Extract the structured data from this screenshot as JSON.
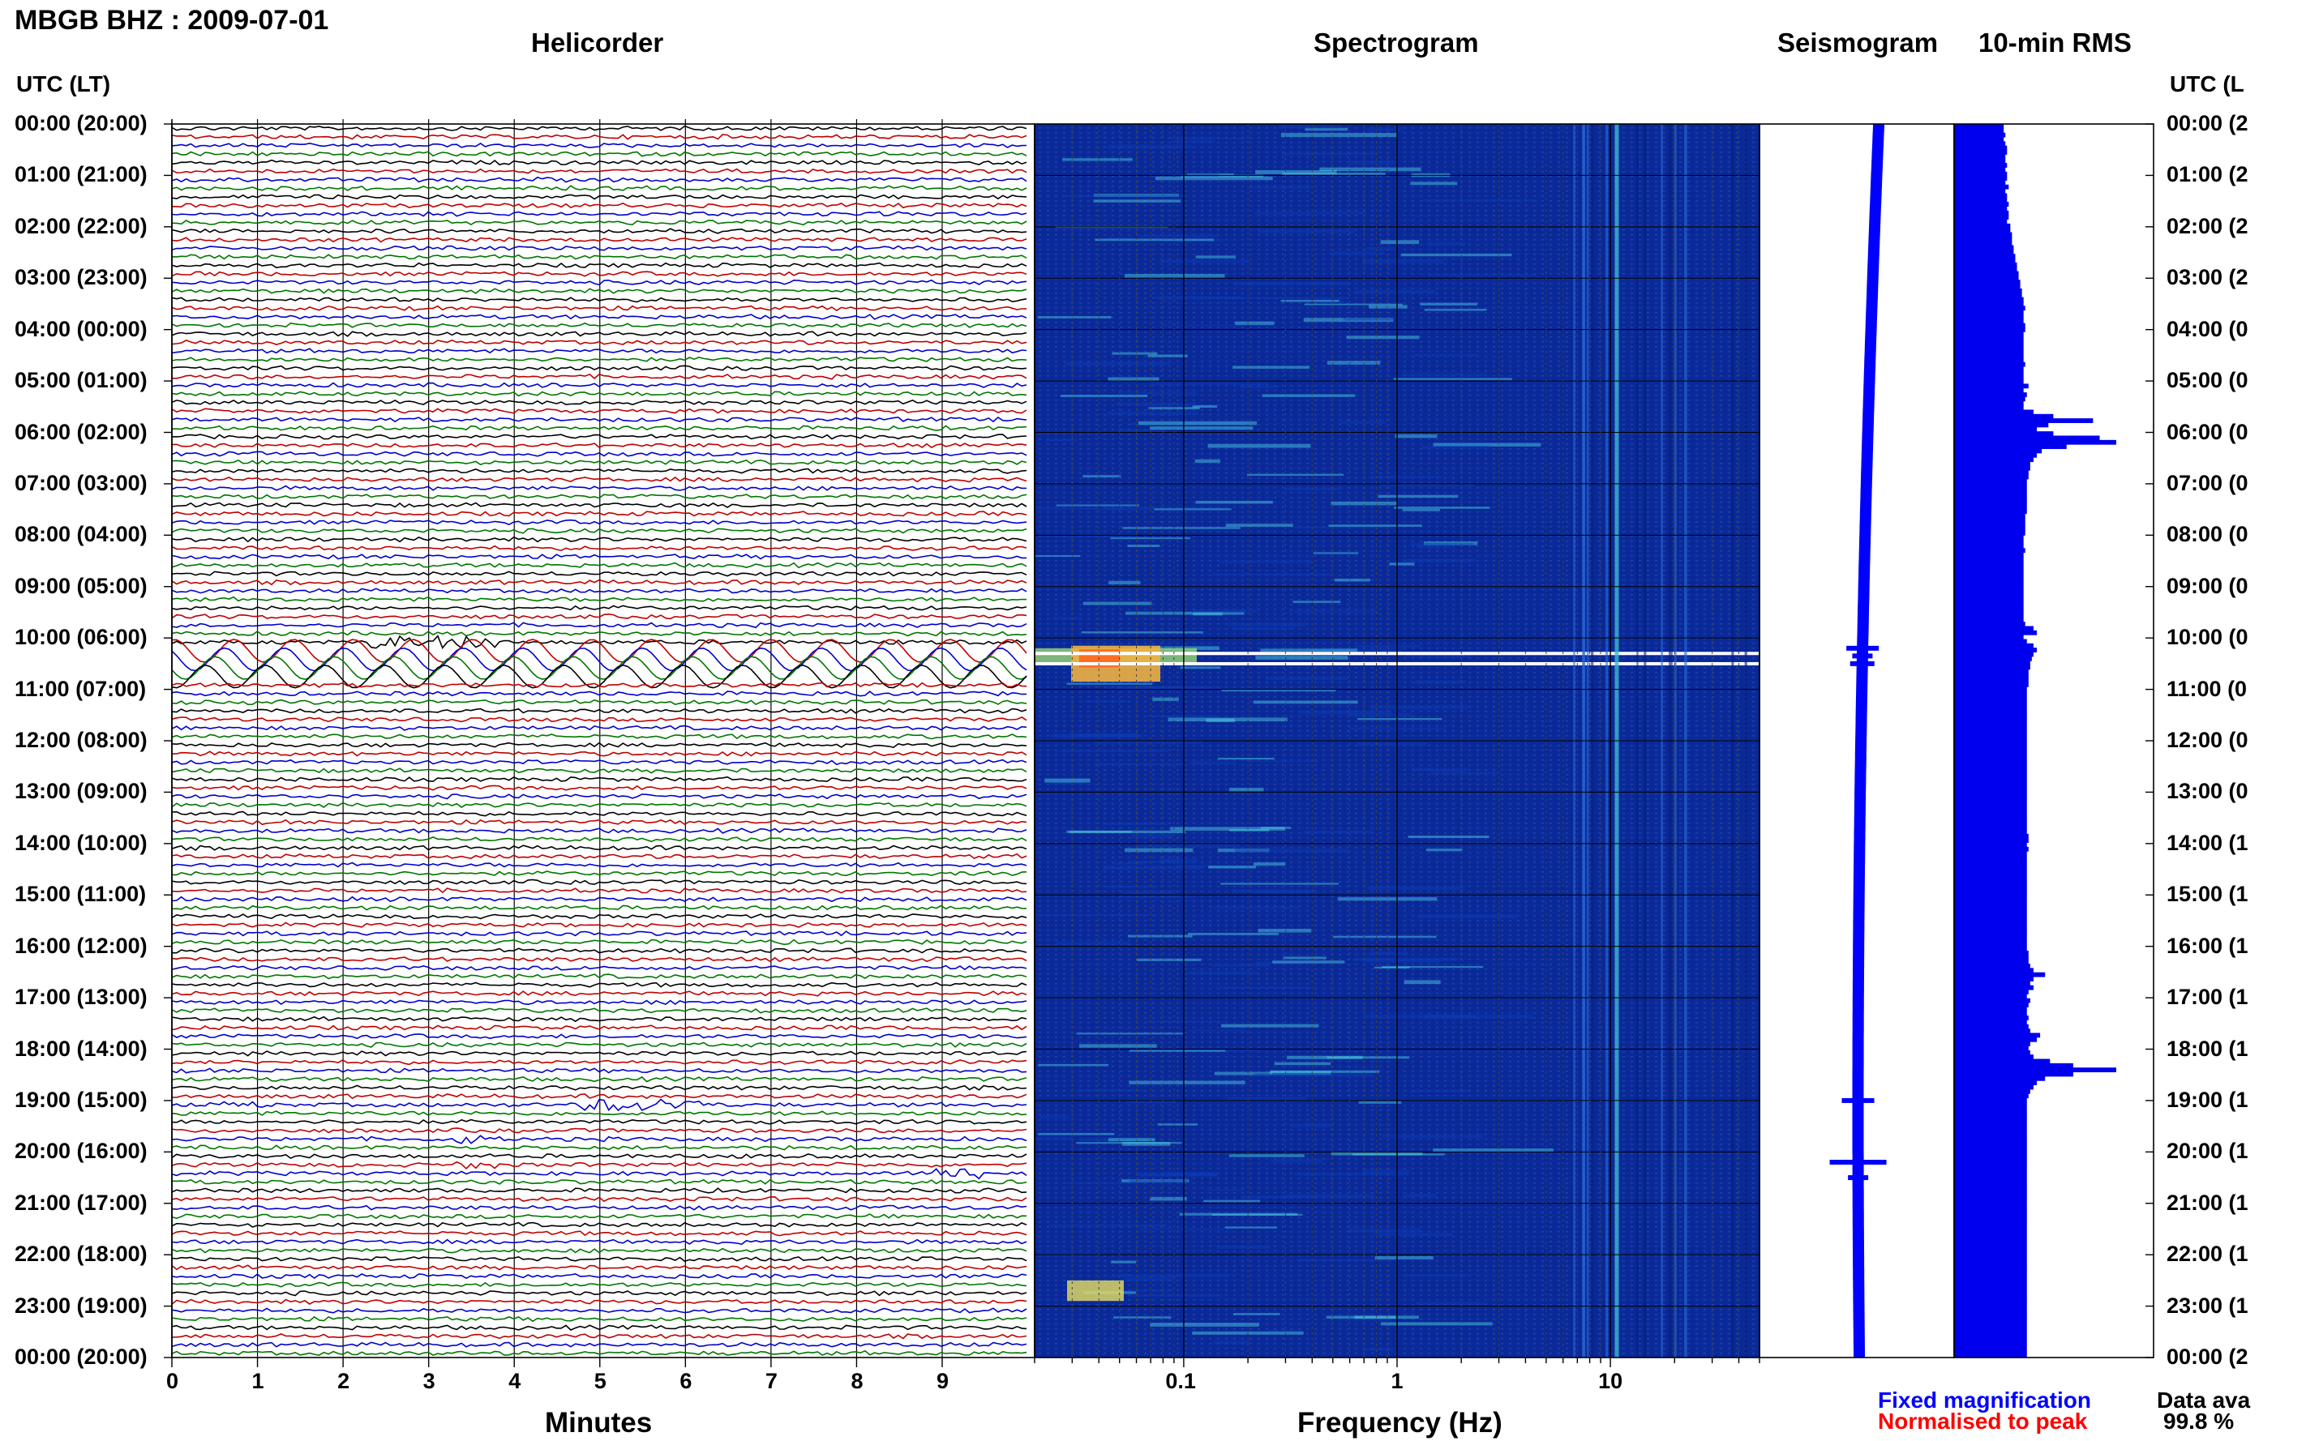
{
  "header": {
    "station_title": "MBGB BHZ : 2009-07-01",
    "helicorder_title": "Helicorder",
    "spectrogram_title": "Spectrogram",
    "seismogram_title": "Seismogram",
    "rms_title": "10-min RMS",
    "left_axis_header": "UTC (LT)",
    "right_axis_header": "UTC (L"
  },
  "time_labels_left": [
    "00:00 (20:00)",
    "01:00 (21:00)",
    "02:00 (22:00)",
    "03:00 (23:00)",
    "04:00 (00:00)",
    "05:00 (01:00)",
    "06:00 (02:00)",
    "07:00 (03:00)",
    "08:00 (04:00)",
    "09:00 (05:00)",
    "10:00 (06:00)",
    "11:00 (07:00)",
    "12:00 (08:00)",
    "13:00 (09:00)",
    "14:00 (10:00)",
    "15:00 (11:00)",
    "16:00 (12:00)",
    "17:00 (13:00)",
    "18:00 (14:00)",
    "19:00 (15:00)",
    "20:00 (16:00)",
    "21:00 (17:00)",
    "22:00 (18:00)",
    "23:00 (19:00)",
    "00:00 (20:00)"
  ],
  "time_labels_right": [
    "00:00 (2",
    "01:00 (2",
    "02:00 (2",
    "03:00 (2",
    "04:00 (0",
    "05:00 (0",
    "06:00 (0",
    "07:00 (0",
    "08:00 (0",
    "09:00 (0",
    "10:00 (0",
    "11:00 (0",
    "12:00 (0",
    "13:00 (0",
    "14:00 (1",
    "15:00 (1",
    "16:00 (1",
    "17:00 (1",
    "18:00 (1",
    "19:00 (1",
    "20:00 (1",
    "21:00 (1",
    "22:00 (1",
    "23:00 (1",
    "00:00 (2"
  ],
  "helicorder": {
    "xlabel": "Minutes",
    "x_ticks": [
      "0",
      "1",
      "2",
      "3",
      "4",
      "5",
      "6",
      "7",
      "8",
      "9"
    ],
    "trace_colors": [
      "#000000",
      "#c00000",
      "#0000cc",
      "#007700"
    ]
  },
  "spectrogram": {
    "xlabel": "Frequency (Hz)",
    "x_ticks": [
      "0.1",
      "1",
      "10"
    ]
  },
  "footer": {
    "fixed_magnification": "Fixed magnification",
    "normalised_to_peak": "Normalised to peak",
    "data_availability_label": "Data ava",
    "data_availability_value": "99.8 %"
  },
  "colors": {
    "fixed_magnification": "#0000ff",
    "normalised_to_peak": "#ff0000",
    "rms_bar": "#0000ee",
    "seismogram": "#0000ff"
  },
  "chart_data": [
    {
      "type": "line",
      "title": "Helicorder",
      "xlabel": "Minutes",
      "xlim": [
        0,
        10
      ],
      "ylabel": "UTC (LT)",
      "rows_per_hour": 6,
      "events": [
        {
          "time_utc": "10:00-10:20",
          "note": "large oscillating signal"
        },
        {
          "time_utc": "19:00",
          "note": "local event"
        },
        {
          "time_utc": "20:10",
          "note": "local event"
        }
      ]
    },
    {
      "type": "heatmap",
      "title": "Spectrogram",
      "xlabel": "Frequency (Hz)",
      "x_scale": "log",
      "xlim": [
        0.02,
        50
      ],
      "x_ticks": [
        0.1,
        1,
        10
      ],
      "ylim_hours": [
        0,
        24
      ]
    },
    {
      "type": "bar",
      "title": "10-min RMS",
      "orientation": "horizontal",
      "bins_per_hour": 6,
      "values_relative": [
        0.3,
        0.3,
        0.31,
        0.3,
        0.31,
        0.32,
        0.32,
        0.31,
        0.31,
        0.32,
        0.31,
        0.32,
        0.32,
        0.31,
        0.33,
        0.31,
        0.32,
        0.32,
        0.33,
        0.32,
        0.33,
        0.33,
        0.32,
        0.34,
        0.34,
        0.35,
        0.35,
        0.35,
        0.36,
        0.36,
        0.37,
        0.37,
        0.38,
        0.38,
        0.39,
        0.39,
        0.4,
        0.4,
        0.41,
        0.41,
        0.42,
        0.42,
        0.43,
        0.42,
        0.42,
        0.42,
        0.43,
        0.43,
        0.42,
        0.42,
        0.42,
        0.42,
        0.42,
        0.42,
        0.42,
        0.43,
        0.42,
        0.42,
        0.42,
        0.42,
        0.45,
        0.42,
        0.44,
        0.43,
        0.42,
        0.42,
        0.48,
        0.6,
        0.84,
        0.57,
        0.5,
        0.6,
        0.88,
        0.98,
        0.68,
        0.53,
        0.5,
        0.48,
        0.46,
        0.46,
        0.45,
        0.45,
        0.44,
        0.44,
        0.44,
        0.44,
        0.44,
        0.44,
        0.44,
        0.44,
        0.43,
        0.43,
        0.43,
        0.43,
        0.43,
        0.42,
        0.42,
        0.42,
        0.43,
        0.42,
        0.42,
        0.42,
        0.42,
        0.42,
        0.42,
        0.42,
        0.42,
        0.42,
        0.42,
        0.42,
        0.42,
        0.42,
        0.42,
        0.42,
        0.42,
        0.43,
        0.48,
        0.5,
        0.42,
        0.44,
        0.48,
        0.5,
        0.48,
        0.47,
        0.46,
        0.46,
        0.45,
        0.45,
        0.45,
        0.45,
        0.44,
        0.44,
        0.44,
        0.44,
        0.44,
        0.44,
        0.44,
        0.44,
        0.44,
        0.44,
        0.44,
        0.44,
        0.44,
        0.44,
        0.44,
        0.44,
        0.44,
        0.44,
        0.44,
        0.44,
        0.44,
        0.44,
        0.44,
        0.44,
        0.44,
        0.44,
        0.44,
        0.44,
        0.44,
        0.44,
        0.44,
        0.44,
        0.44,
        0.44,
        0.45,
        0.45,
        0.44,
        0.45,
        0.44,
        0.44,
        0.44,
        0.44,
        0.44,
        0.44,
        0.44,
        0.44,
        0.44,
        0.44,
        0.44,
        0.44,
        0.44,
        0.44,
        0.44,
        0.44,
        0.44,
        0.44,
        0.44,
        0.44,
        0.44,
        0.44,
        0.44,
        0.45,
        0.45,
        0.45,
        0.46,
        0.48,
        0.55,
        0.48,
        0.46,
        0.48,
        0.45,
        0.44,
        0.46,
        0.45,
        0.44,
        0.44,
        0.45,
        0.44,
        0.45,
        0.46,
        0.52,
        0.5,
        0.46,
        0.45,
        0.46,
        0.48,
        0.58,
        0.72,
        0.98,
        0.72,
        0.55,
        0.5,
        0.48,
        0.46,
        0.45,
        0.44,
        0.44,
        0.44,
        0.44,
        0.44,
        0.44,
        0.44,
        0.44,
        0.44,
        0.44,
        0.44,
        0.44,
        0.44,
        0.44,
        0.44,
        0.44,
        0.44,
        0.44,
        0.44,
        0.44,
        0.44,
        0.44,
        0.44,
        0.44,
        0.44,
        0.44,
        0.44,
        0.44,
        0.44,
        0.44,
        0.44,
        0.44,
        0.44,
        0.44,
        0.44,
        0.44,
        0.44,
        0.44,
        0.44,
        0.44,
        0.44,
        0.44,
        0.44,
        0.44,
        0.44,
        0.44,
        0.44,
        0.44,
        0.44,
        0.44,
        0.44,
        0.44,
        0.44,
        0.44,
        0.44,
        0.44,
        0.44,
        0.44,
        0.44,
        0.44
      ]
    }
  ]
}
